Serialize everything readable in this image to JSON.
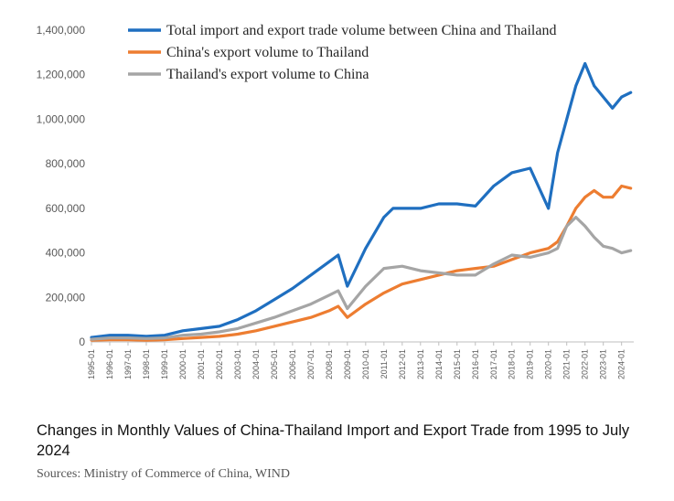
{
  "caption": "Changes in Monthly Values of China-Thailand Import and Export Trade from 1995 to July 2024",
  "source": "Sources: Ministry of Commerce of China, WIND",
  "chart_data": {
    "type": "line",
    "title": "",
    "xlabel": "",
    "ylabel": "",
    "ylim": [
      0,
      1400000
    ],
    "yticks": [
      "0",
      "200,000",
      "400,000",
      "600,000",
      "800,000",
      "1,000,000",
      "1,200,000",
      "1,400,000"
    ],
    "xticks": [
      "1995-01",
      "1996-01",
      "1997-01",
      "1998-01",
      "1999-01",
      "2000-01",
      "2001-01",
      "2002-01",
      "2003-01",
      "2004-01",
      "2005-01",
      "2006-01",
      "2007-01",
      "2008-01",
      "2009-01",
      "2010-01",
      "2011-01",
      "2012-01",
      "2013-01",
      "2014-01",
      "2015-01",
      "2016-01",
      "2017-01",
      "2018-01",
      "2019-01",
      "2020-01",
      "2021-01",
      "2022-01",
      "2023-01",
      "2024-01"
    ],
    "grid": false,
    "legend_position": "top",
    "series": [
      {
        "name": "Total import and export trade volume between China and Thailand",
        "color": "#1f6fc0",
        "x": [
          "1995-01",
          "1996-01",
          "1997-01",
          "1998-01",
          "1999-01",
          "2000-01",
          "2001-01",
          "2002-01",
          "2003-01",
          "2004-01",
          "2005-01",
          "2006-01",
          "2007-01",
          "2008-01",
          "2008-07",
          "2009-01",
          "2010-01",
          "2011-01",
          "2011-07",
          "2012-01",
          "2013-01",
          "2014-01",
          "2015-01",
          "2016-01",
          "2017-01",
          "2018-01",
          "2019-01",
          "2020-01",
          "2020-07",
          "2021-01",
          "2021-07",
          "2022-01",
          "2022-07",
          "2023-01",
          "2023-07",
          "2024-01",
          "2024-07"
        ],
        "values": [
          20000,
          30000,
          30000,
          25000,
          30000,
          50000,
          60000,
          70000,
          100000,
          140000,
          190000,
          240000,
          300000,
          360000,
          390000,
          250000,
          420000,
          560000,
          600000,
          600000,
          600000,
          620000,
          620000,
          610000,
          700000,
          760000,
          780000,
          600000,
          850000,
          1000000,
          1150000,
          1250000,
          1150000,
          1100000,
          1050000,
          1100000,
          1120000
        ]
      },
      {
        "name": "China's export volume to Thailand",
        "color": "#ed7d31",
        "x": [
          "1995-01",
          "1996-01",
          "1997-01",
          "1998-01",
          "1999-01",
          "2000-01",
          "2001-01",
          "2002-01",
          "2003-01",
          "2004-01",
          "2005-01",
          "2006-01",
          "2007-01",
          "2008-01",
          "2008-07",
          "2009-01",
          "2010-01",
          "2011-01",
          "2012-01",
          "2013-01",
          "2014-01",
          "2015-01",
          "2016-01",
          "2017-01",
          "2018-01",
          "2019-01",
          "2020-01",
          "2020-07",
          "2021-01",
          "2021-07",
          "2022-01",
          "2022-07",
          "2023-01",
          "2023-07",
          "2024-01",
          "2024-07"
        ],
        "values": [
          8000,
          10000,
          10000,
          8000,
          10000,
          15000,
          20000,
          25000,
          35000,
          50000,
          70000,
          90000,
          110000,
          140000,
          160000,
          110000,
          170000,
          220000,
          260000,
          280000,
          300000,
          320000,
          330000,
          340000,
          370000,
          400000,
          420000,
          450000,
          520000,
          600000,
          650000,
          680000,
          650000,
          650000,
          700000,
          690000
        ]
      },
      {
        "name": "Thailand's export volume to China",
        "color": "#a5a5a5",
        "x": [
          "1995-01",
          "1996-01",
          "1997-01",
          "1998-01",
          "1999-01",
          "2000-01",
          "2001-01",
          "2002-01",
          "2003-01",
          "2004-01",
          "2005-01",
          "2006-01",
          "2007-01",
          "2008-01",
          "2008-07",
          "2009-01",
          "2010-01",
          "2011-01",
          "2012-01",
          "2013-01",
          "2014-01",
          "2015-01",
          "2016-01",
          "2017-01",
          "2018-01",
          "2019-01",
          "2020-01",
          "2020-07",
          "2021-01",
          "2021-07",
          "2022-01",
          "2022-07",
          "2023-01",
          "2023-07",
          "2024-01",
          "2024-07"
        ],
        "values": [
          12000,
          18000,
          18000,
          15000,
          18000,
          30000,
          35000,
          45000,
          60000,
          85000,
          110000,
          140000,
          170000,
          210000,
          230000,
          150000,
          250000,
          330000,
          340000,
          320000,
          310000,
          300000,
          300000,
          350000,
          390000,
          380000,
          400000,
          420000,
          520000,
          560000,
          520000,
          470000,
          430000,
          420000,
          400000,
          410000
        ]
      }
    ]
  }
}
